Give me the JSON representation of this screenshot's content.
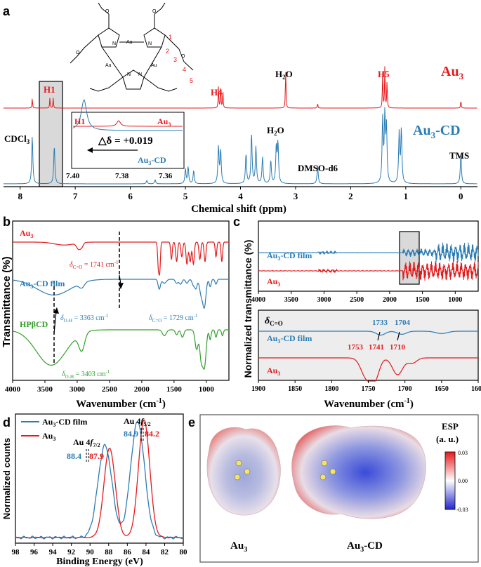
{
  "panel_letters": [
    "a",
    "b",
    "c",
    "d",
    "e"
  ],
  "colors": {
    "au3": "#e41a1c",
    "au3cd": "#2b7cb4",
    "hpbcd": "#33a02c",
    "black": "#000000",
    "highlight": "#d9d9d9"
  },
  "chart_data": [
    {
      "id": "a",
      "type": "line",
      "xlabel": "Chemical shift (ppm)",
      "xticks": [
        8,
        7,
        6,
        5,
        4,
        3,
        2,
        1,
        0
      ],
      "xlim": [
        8.2,
        -0.2
      ],
      "series": [
        {
          "name": "Au3",
          "label_main": "Au",
          "label_sub": "3",
          "color": "#e41a1c",
          "peaks": [
            {
              "x": 7.78,
              "h": 0.25
            },
            {
              "x": 7.46,
              "h": 0.25
            },
            {
              "x": 7.4,
              "h": 0.25
            },
            {
              "x": 4.4,
              "h": 0.55
            },
            {
              "x": 4.36,
              "h": 0.6
            },
            {
              "x": 4.32,
              "h": 0.45
            },
            {
              "x": 3.18,
              "h": 1.0
            },
            {
              "x": 2.6,
              "h": 0.12
            },
            {
              "x": 1.42,
              "h": 0.9
            },
            {
              "x": 1.38,
              "h": 1.0
            },
            {
              "x": 1.34,
              "h": 0.7
            },
            {
              "x": 0.0,
              "h": 0.2
            }
          ]
        },
        {
          "name": "Au3-CD",
          "label_main": "Au",
          "label_sub": "3",
          "label_suffix": "-CD",
          "color": "#2b7cb4",
          "peaks": [
            {
              "x": 7.78,
              "h": 0.72
            },
            {
              "x": 7.38,
              "h": 0.58
            },
            {
              "x": 5.7,
              "h": 0.05
            },
            {
              "x": 5.55,
              "h": 0.06
            },
            {
              "x": 5.0,
              "h": 0.22
            },
            {
              "x": 4.95,
              "h": 0.25
            },
            {
              "x": 4.85,
              "h": 0.2
            },
            {
              "x": 4.4,
              "h": 0.55
            },
            {
              "x": 4.36,
              "h": 0.5
            },
            {
              "x": 3.9,
              "h": 0.45
            },
            {
              "x": 3.8,
              "h": 0.75
            },
            {
              "x": 3.72,
              "h": 0.55
            },
            {
              "x": 3.6,
              "h": 0.4
            },
            {
              "x": 3.45,
              "h": 0.35
            },
            {
              "x": 3.35,
              "h": 0.55
            },
            {
              "x": 3.32,
              "h": 0.6
            },
            {
              "x": 2.6,
              "h": 0.28
            },
            {
              "x": 1.42,
              "h": 0.95
            },
            {
              "x": 1.38,
              "h": 0.98
            },
            {
              "x": 1.35,
              "h": 0.8
            },
            {
              "x": 1.12,
              "h": 0.75
            },
            {
              "x": 1.08,
              "h": 0.8
            },
            {
              "x": 0.0,
              "h": 0.45
            }
          ]
        }
      ],
      "labels": {
        "H1": "H1",
        "H4": "H4",
        "H5": "H5",
        "H2O": "H",
        "H2O_sub": "2",
        "H2O_end": "O",
        "CDCl3": "CDCl",
        "CDCl3_sub": "3",
        "DMSO": "DMSO-d6",
        "TMS": "TMS"
      },
      "inset": {
        "xticks": [
          "7.40",
          "7.38",
          "7.36"
        ],
        "label_h1": "H1",
        "label_au3": "Au",
        "label_au3_sub": "3",
        "label_au3cd": "Au",
        "label_au3cd_sub": "3",
        "label_au3cd_suffix": "-CD",
        "delta_text": "△δ = +0.019"
      },
      "structure_numbers": [
        "1",
        "2",
        "3",
        "4",
        "5"
      ],
      "structure_atoms": {
        "N": "N",
        "O": "O",
        "Au": "Au"
      }
    },
    {
      "id": "b",
      "type": "line",
      "xlabel": "Wavenumber (cm",
      "xlabel_sup": "-1",
      "xlabel_end": ")",
      "ylabel": "Transmittance (%)",
      "xticks": [
        4000,
        3500,
        3000,
        2500,
        2000,
        1500,
        1000
      ],
      "xlim": [
        4000,
        650
      ],
      "series": [
        {
          "name": "Au3",
          "color": "#e41a1c",
          "offset": 0,
          "dips": [
            {
              "x": 3200,
              "d": 0.06,
              "w": 150
            },
            {
              "x": 2980,
              "d": 0.12,
              "w": 30
            },
            {
              "x": 2930,
              "d": 0.08,
              "w": 25
            },
            {
              "x": 1741,
              "d": 0.55,
              "w": 12
            },
            {
              "x": 1720,
              "d": 0.5,
              "w": 10
            },
            {
              "x": 1540,
              "d": 0.35,
              "w": 12
            },
            {
              "x": 1460,
              "d": 0.4,
              "w": 14
            },
            {
              "x": 1380,
              "d": 0.3,
              "w": 14
            },
            {
              "x": 1300,
              "d": 0.45,
              "w": 15
            },
            {
              "x": 1250,
              "d": 0.4,
              "w": 15
            },
            {
              "x": 1200,
              "d": 0.45,
              "w": 14
            },
            {
              "x": 1100,
              "d": 0.35,
              "w": 14
            },
            {
              "x": 1020,
              "d": 0.4,
              "w": 14
            },
            {
              "x": 850,
              "d": 0.3,
              "w": 12
            },
            {
              "x": 760,
              "d": 0.4,
              "w": 12
            }
          ]
        },
        {
          "name": "Au3-CD film",
          "color": "#2b7cb4",
          "offset": 1,
          "dips": [
            {
              "x": 3363,
              "d": 0.32,
              "w": 260
            },
            {
              "x": 2930,
              "d": 0.1,
              "w": 40
            },
            {
              "x": 1729,
              "d": 0.2,
              "w": 18
            },
            {
              "x": 1650,
              "d": 0.08,
              "w": 30
            },
            {
              "x": 1460,
              "d": 0.08,
              "w": 20
            },
            {
              "x": 1400,
              "d": 0.1,
              "w": 22
            },
            {
              "x": 1300,
              "d": 0.08,
              "w": 20
            },
            {
              "x": 1200,
              "d": 0.12,
              "w": 20
            },
            {
              "x": 1160,
              "d": 0.18,
              "w": 18
            },
            {
              "x": 1080,
              "d": 0.3,
              "w": 24
            },
            {
              "x": 1030,
              "d": 0.55,
              "w": 24
            },
            {
              "x": 940,
              "d": 0.15,
              "w": 15
            },
            {
              "x": 850,
              "d": 0.1,
              "w": 15
            }
          ]
        },
        {
          "name": "HPβCD",
          "color": "#33a02c",
          "offset": 2,
          "dips": [
            {
              "x": 3403,
              "d": 0.72,
              "w": 230
            },
            {
              "x": 2930,
              "d": 0.35,
              "w": 45
            },
            {
              "x": 1650,
              "d": 0.12,
              "w": 30
            },
            {
              "x": 1460,
              "d": 0.1,
              "w": 20
            },
            {
              "x": 1370,
              "d": 0.15,
              "w": 22
            },
            {
              "x": 1150,
              "d": 0.4,
              "w": 24
            },
            {
              "x": 1080,
              "d": 0.55,
              "w": 22
            },
            {
              "x": 1030,
              "d": 0.75,
              "w": 26
            },
            {
              "x": 940,
              "d": 0.2,
              "w": 14
            },
            {
              "x": 850,
              "d": 0.15,
              "w": 14
            },
            {
              "x": 750,
              "d": 0.12,
              "w": 14
            }
          ]
        }
      ],
      "labels": {
        "au3": "Au",
        "au3_sub": "3",
        "au3cd": "Au",
        "au3cd_sub": "3",
        "au3cd_suffix": "-CD film",
        "hpbcd": "HPβCD",
        "a_co1": "δ",
        "a_co1_sub": "C=O",
        "a_co1_val": " = 1741 cm",
        "a_co1_sup": "-1",
        "a_oh1": "δ",
        "a_oh1_sub": "O-H",
        "a_oh1_val": " = 3363 cm",
        "a_oh1_sup": "-1",
        "a_co2": "δ",
        "a_co2_sub": "C=O",
        "a_co2_val": " = 1729 cm",
        "a_co2_sup": "-1",
        "a_oh2": "δ",
        "a_oh2_sub": "O-H",
        "a_oh2_val": " = 3403 cm",
        "a_oh2_sup": "-1"
      }
    },
    {
      "id": "c",
      "type": "line",
      "ylabel": "Normalized transmittance (%)",
      "xlabel": "Wavenumber (cm",
      "xlabel_sup": "-1",
      "xlabel_end": ")",
      "top": {
        "xticks": [
          4000,
          3500,
          3000,
          2500,
          2000,
          1500,
          1000
        ],
        "xlim": [
          4000,
          650
        ]
      },
      "bottom": {
        "xticks": [
          1900,
          1850,
          1800,
          1750,
          1700,
          1650,
          1600
        ],
        "xlim": [
          1900,
          1600
        ],
        "series": [
          {
            "name": "Au3-CD film",
            "color": "#2b7cb4",
            "dips": [
              {
                "x": 1733,
                "d": 0.25,
                "w": 6
              },
              {
                "x": 1704,
                "d": 0.2,
                "w": 6
              },
              {
                "x": 1650,
                "d": 0.15,
                "w": 8
              }
            ]
          },
          {
            "name": "Au3",
            "color": "#e41a1c",
            "dips": [
              {
                "x": 1753,
                "d": 0.9,
                "w": 7
              },
              {
                "x": 1741,
                "d": 0.95,
                "w": 6
              },
              {
                "x": 1710,
                "d": 0.8,
                "w": 7
              },
              {
                "x": 1690,
                "d": 0.25,
                "w": 6
              }
            ]
          }
        ],
        "peak_labels_cd": [
          "1733",
          "1704"
        ],
        "peak_labels_au3": [
          "1753",
          "1741",
          "1710"
        ],
        "delta": "δ",
        "delta_sub": "C=O"
      },
      "labels": {
        "au3cd": "Au",
        "au3cd_sub": "3",
        "au3cd_suffix": "-CD film",
        "au3": "Au",
        "au3_sub": "3"
      }
    },
    {
      "id": "d",
      "type": "line",
      "xlabel": "Binding Energy (eV)",
      "ylabel": "Normalized counts",
      "xticks": [
        98,
        96,
        94,
        92,
        90,
        88,
        86,
        84,
        82,
        80
      ],
      "xlim": [
        98,
        80
      ],
      "series": [
        {
          "name": "Au3-CD film",
          "label_main": "Au",
          "label_sub": "3",
          "label_suffix": "-CD film",
          "color": "#2b7cb4",
          "peaks": [
            {
              "x": 88.4,
              "h": 0.78,
              "w": 0.75
            },
            {
              "x": 84.9,
              "h": 0.98,
              "w": 0.75
            }
          ]
        },
        {
          "name": "Au3",
          "label_main": "Au",
          "label_sub": "3",
          "color": "#e41a1c",
          "peaks": [
            {
              "x": 87.9,
              "h": 0.76,
              "w": 0.6
            },
            {
              "x": 84.2,
              "h": 1.0,
              "w": 0.6
            }
          ]
        }
      ],
      "annotations": {
        "au4f72": "Au 4",
        "au4f72_f": "f",
        "au4f72_sub": "7/2",
        "au4f52": "Au 4",
        "au4f52_f": "f",
        "au4f52_sub": "5/2",
        "v884": "88.4",
        "v879": "87.9",
        "v849": "84.9",
        "v842": "84.2"
      }
    },
    {
      "id": "e",
      "type": "heatmap",
      "title_left_main": "Au",
      "title_left_sub": "3",
      "title_right_main": "Au",
      "title_right_sub": "3",
      "title_right_suffix": "-CD",
      "colorbar_title": "ESP",
      "colorbar_unit": "(a. u.)",
      "colorbar_ticks": [
        "0.03",
        "0.00",
        "-0.03"
      ]
    }
  ]
}
